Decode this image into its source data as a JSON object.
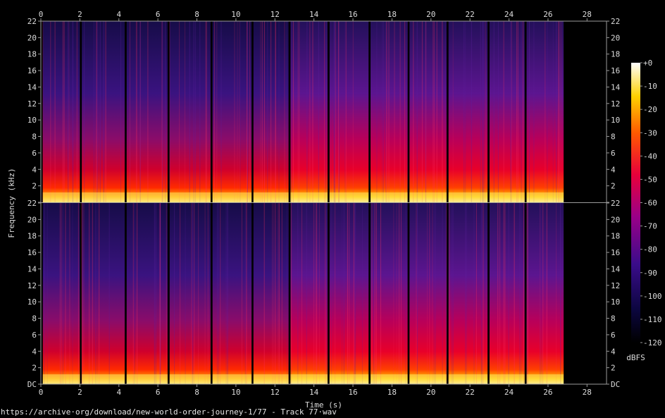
{
  "chart_data": {
    "type": "heatmap",
    "title": "",
    "xlabel": "Time (s)",
    "ylabel": "Frequency (kHz)",
    "colorbar_label": "dBFS",
    "xlim": [
      0,
      29
    ],
    "ylim": [
      0,
      22
    ],
    "x_ticks": [
      0,
      2,
      4,
      6,
      8,
      10,
      12,
      14,
      16,
      18,
      20,
      22,
      24,
      26,
      28
    ],
    "y_ticks": [
      "DC",
      "2",
      "4",
      "6",
      "8",
      "10",
      "12",
      "14",
      "16",
      "18",
      "20",
      "22"
    ],
    "colorbar_ticks": [
      "+0",
      "-10",
      "-20",
      "-30",
      "-40",
      "-50",
      "-60",
      "-70",
      "-80",
      "-90",
      "-100",
      "-110",
      "-120"
    ],
    "colorbar_range_dbfs": [
      -120,
      0
    ],
    "channels": [
      "top",
      "bottom"
    ],
    "segments_s": [
      {
        "start": 0.1,
        "end": 2.0
      },
      {
        "start": 2.1,
        "end": 4.3
      },
      {
        "start": 4.4,
        "end": 6.5
      },
      {
        "start": 6.6,
        "end": 8.7
      },
      {
        "start": 8.8,
        "end": 10.8
      },
      {
        "start": 10.9,
        "end": 12.7
      },
      {
        "start": 12.8,
        "end": 14.7
      },
      {
        "start": 14.8,
        "end": 16.8
      },
      {
        "start": 16.9,
        "end": 18.8
      },
      {
        "start": 18.9,
        "end": 20.8
      },
      {
        "start": 20.9,
        "end": 22.9
      },
      {
        "start": 23.0,
        "end": 24.8
      },
      {
        "start": 24.9,
        "end": 26.8
      }
    ]
  },
  "colors": {
    "background": "#000000",
    "axis": "#9a9a9a",
    "text": "#dcdcdc"
  },
  "footer": {
    "source_url": "https://archive·org/download/new-world-order-journey-1/77 - Track 77·wav"
  }
}
